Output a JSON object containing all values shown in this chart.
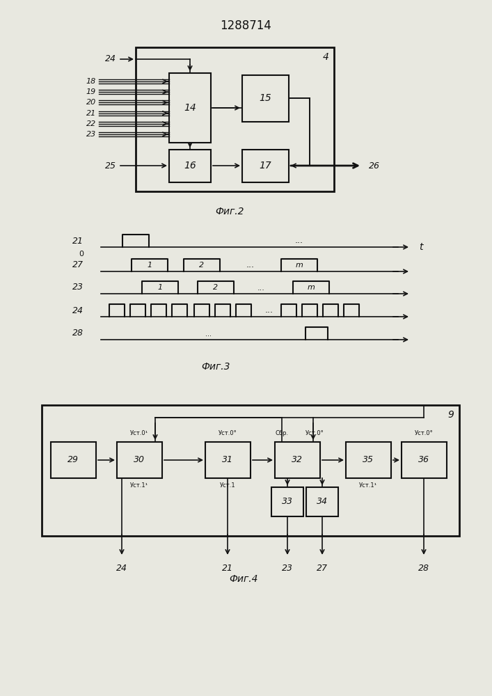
{
  "title": "1288714",
  "fig2_label": "Фиг.2",
  "fig3_label": "Фиг.3",
  "fig4_label": "Фиг.4",
  "bg_color": "#e8e8e0",
  "line_color": "#111111",
  "box_color": "#e8e8e0"
}
